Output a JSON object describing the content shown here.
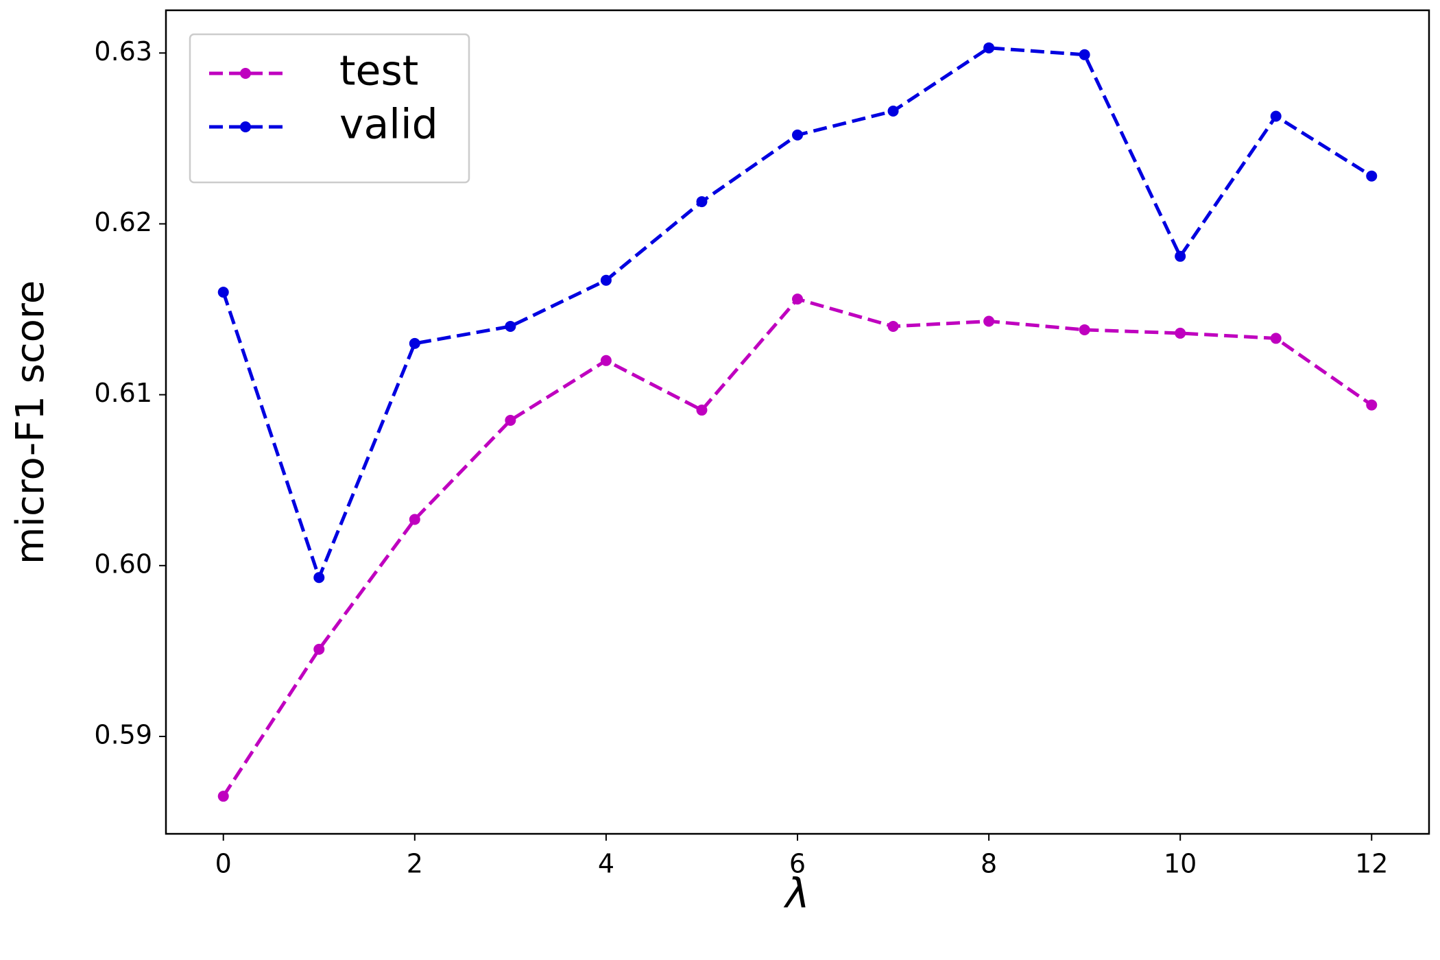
{
  "chart_data": {
    "type": "line",
    "xlabel": "λ",
    "ylabel": "micro-F1 score",
    "x": [
      0,
      1,
      2,
      3,
      4,
      5,
      6,
      7,
      8,
      9,
      10,
      11,
      12
    ],
    "series": [
      {
        "name": "test",
        "color": "#bf00bf",
        "values": [
          0.5865,
          0.5951,
          0.6027,
          0.6085,
          0.612,
          0.6091,
          0.6156,
          0.614,
          0.6143,
          0.6138,
          0.6136,
          0.6133,
          0.6094
        ]
      },
      {
        "name": "valid",
        "color": "#0000e0",
        "values": [
          0.616,
          0.5993,
          0.613,
          0.614,
          0.6167,
          0.6213,
          0.6252,
          0.6266,
          0.6303,
          0.6299,
          0.6181,
          0.6263,
          0.6228
        ]
      }
    ],
    "xlim": [
      -0.6,
      12.6
    ],
    "ylim": [
      0.5843,
      0.6325
    ],
    "xticks": [
      0,
      2,
      4,
      6,
      8,
      10,
      12
    ],
    "yticks": [
      {
        "value": 0.59,
        "label": "0.59"
      },
      {
        "value": 0.6,
        "label": "0.60"
      },
      {
        "value": 0.61,
        "label": "0.61"
      },
      {
        "value": 0.62,
        "label": "0.62"
      },
      {
        "value": 0.63,
        "label": "0.63"
      }
    ],
    "legend": "upper left",
    "grid": false
  }
}
